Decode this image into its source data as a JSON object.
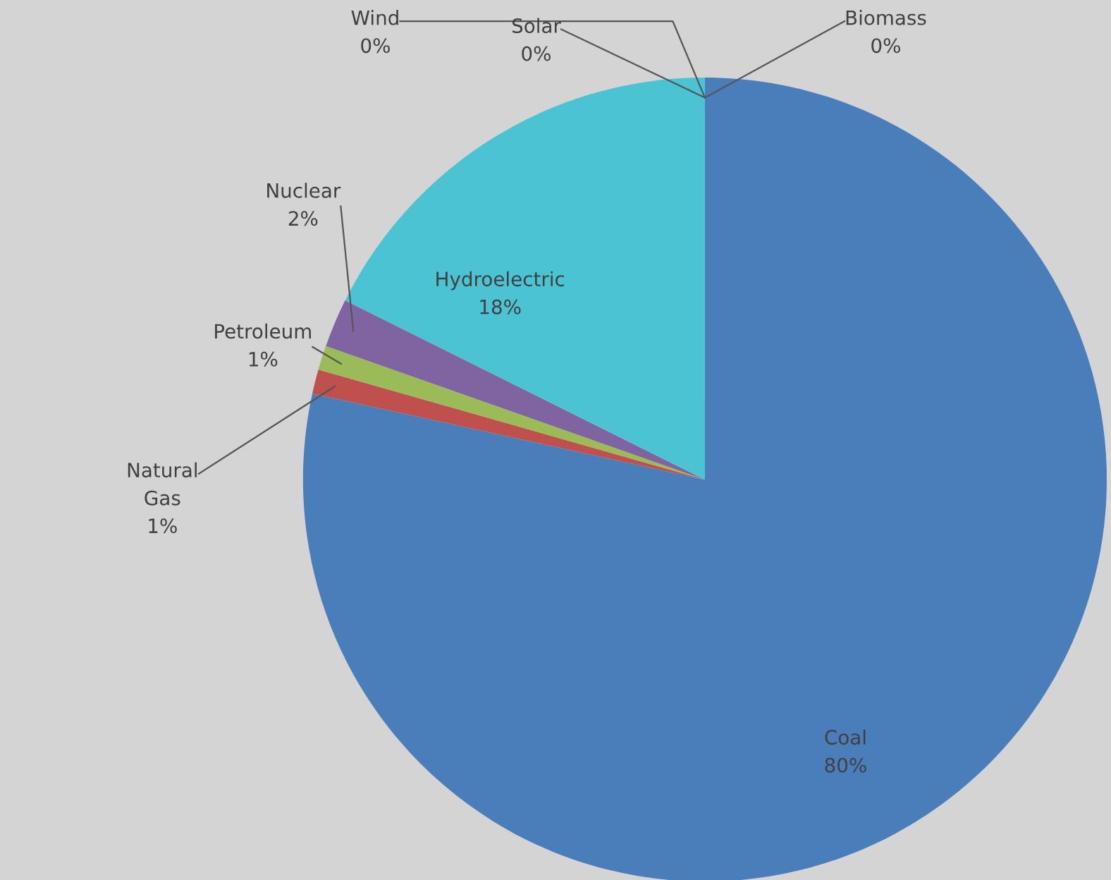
{
  "chart_data": {
    "type": "pie",
    "categories": [
      "Coal",
      "Natural Gas",
      "Petroleum",
      "Nuclear",
      "Hydroelectric",
      "Wind",
      "Solar",
      "Biomass"
    ],
    "values": [
      80,
      1,
      1,
      2,
      18,
      0,
      0,
      0
    ],
    "value_labels": [
      "80%",
      "1%",
      "1%",
      "2%",
      "18%",
      "0%",
      "0%",
      "0%"
    ],
    "colors": [
      "#4a7ebb",
      "#c0504d",
      "#9bbb59",
      "#8064a2",
      "#4bc3d3",
      "#2c4d75",
      "#772c2a",
      "#f79646"
    ],
    "legend": false
  }
}
